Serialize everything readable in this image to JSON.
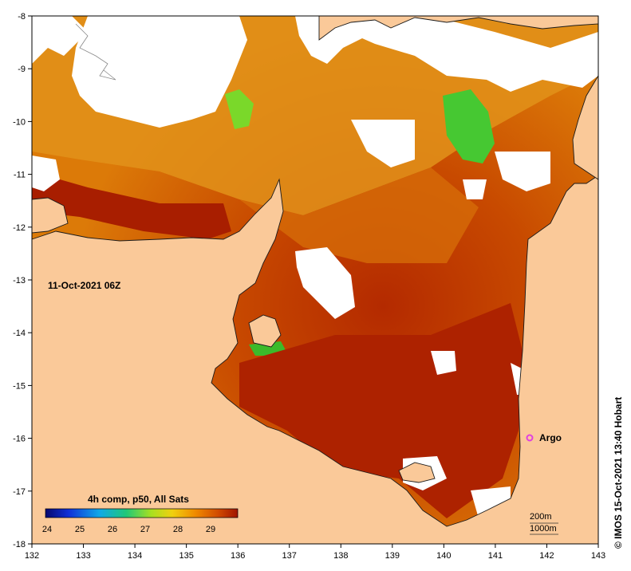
{
  "map": {
    "timestamp": "11-Oct-2021 06Z",
    "credit": "© IMOS 15-Oct-2021 13:40 Hobart",
    "argo_label": "Argo",
    "lon_ticks": [
      "132",
      "133",
      "134",
      "135",
      "136",
      "137",
      "138",
      "139",
      "140",
      "141",
      "142",
      "143"
    ],
    "lat_ticks": [
      "-8",
      "-9",
      "-10",
      "-11",
      "-12",
      "-13",
      "-14",
      "-15",
      "-16",
      "-17",
      "-18"
    ],
    "colorbar": {
      "title": "4h comp, p50, All Sats",
      "ticks": [
        "24",
        "25",
        "26",
        "27",
        "28",
        "29"
      ]
    },
    "isobaths": [
      "200m",
      "1000m"
    ],
    "colors": {
      "land": "#fac999",
      "sst_warm": "#a51e00",
      "sst_mid": "#d86b00",
      "sst_cool": "#e89a1e",
      "sst_green": "#46c832",
      "cloud": "#ffffff",
      "argo": "#e040e0"
    }
  }
}
